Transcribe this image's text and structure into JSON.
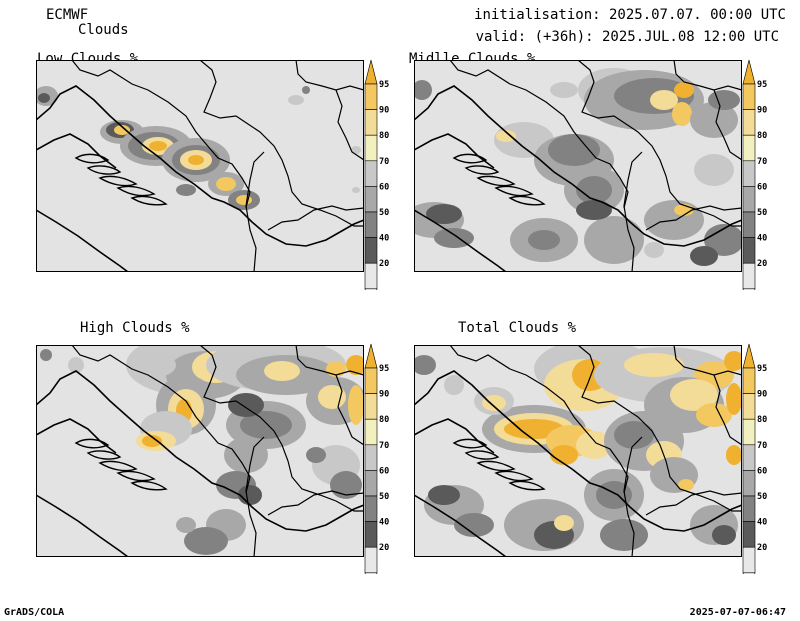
{
  "header": {
    "model": "ECMWF",
    "product": "Clouds",
    "init": "initialisation: 2025.07.07. 00:00 UTC",
    "valid": "valid: (+36h): 2025.JUL.08 12:00 UTC"
  },
  "panels": [
    {
      "id": "low",
      "title": "Low Clouds %"
    },
    {
      "id": "mid",
      "title": "Midlle Clouds %"
    },
    {
      "id": "high",
      "title": "High Clouds %"
    },
    {
      "id": "total",
      "title": "Total Clouds %"
    }
  ],
  "colorbar": {
    "levels": [
      "95",
      "90",
      "80",
      "70",
      "60",
      "50",
      "40",
      "20"
    ],
    "colors": [
      "#f0b030",
      "#f4c860",
      "#f3dc98",
      "#f3f0c0",
      "#c8c8c8",
      "#a8a8a8",
      "#828282",
      "#5a5a5a",
      "#e8e8e8"
    ]
  },
  "map": {
    "background": "#e3e3e3",
    "border_color": "#000000"
  },
  "footer": {
    "left": "GrADS/COLA",
    "right": "2025-07-07-06:47"
  }
}
